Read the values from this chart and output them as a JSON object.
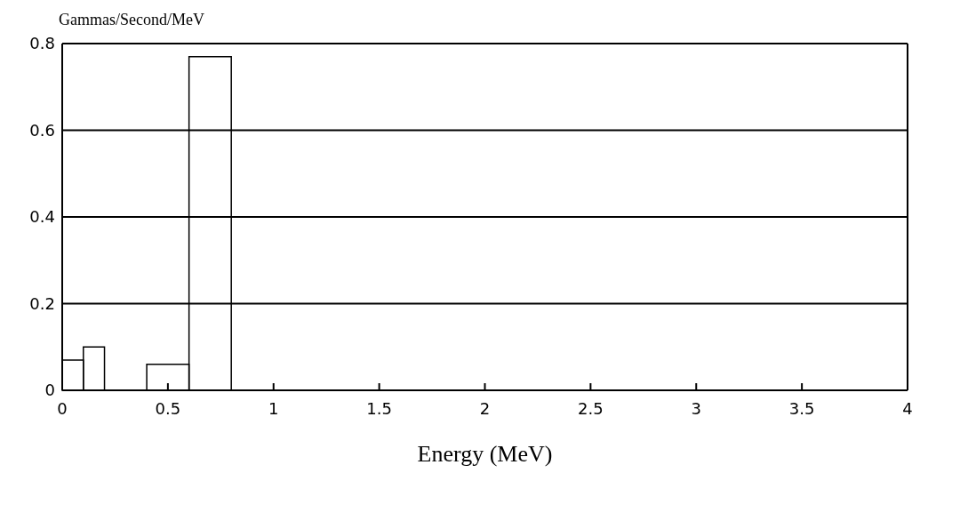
{
  "chart_data": {
    "type": "histogram",
    "ylabel": "Gammas/Second/MeV",
    "xlabel": "Energy (MeV)",
    "bins": [
      0,
      0.1,
      0.2,
      0.4,
      0.6,
      0.8
    ],
    "values": [
      0.07,
      0.1,
      0,
      0.06,
      0.77
    ],
    "color": "#000000",
    "xlim": [
      0,
      4
    ],
    "xticks": [
      0,
      0.5,
      1,
      1.5,
      2,
      2.5,
      3,
      3.5,
      4
    ],
    "ylim": [
      0,
      0.8
    ],
    "yticks": [
      0,
      0.2,
      0.4,
      0.6,
      0.8
    ],
    "grid": "y"
  }
}
